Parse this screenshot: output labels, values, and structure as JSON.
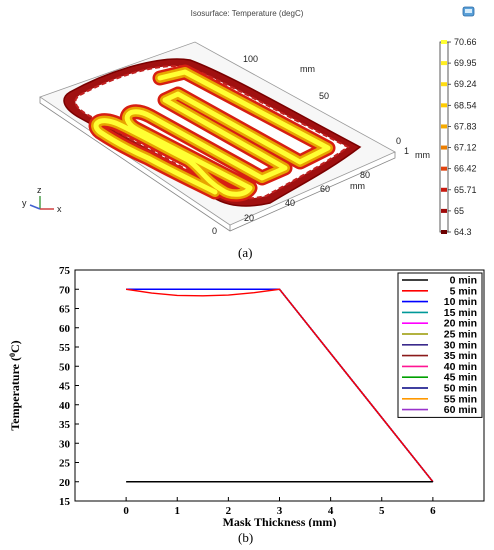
{
  "top_panel": {
    "title": "Isosurface: Temperature (degC)",
    "label": "(a)",
    "colorbar_ticks": [
      "70.66",
      "69.95",
      "69.24",
      "68.54",
      "67.83",
      "67.12",
      "66.42",
      "65.71",
      "65",
      "64.3"
    ],
    "axis_unit": "mm",
    "y_axis_ticks": [
      "100",
      "50",
      "0"
    ],
    "x_axis_ticks": [
      "80",
      "60",
      "40",
      "20",
      "0"
    ],
    "z_axis_tick": "1",
    "triad": {
      "z": "z",
      "y": "y",
      "x": "x"
    },
    "colors": {
      "hot": "#ffff33",
      "warm": "#e8a400",
      "mid": "#e23a1f",
      "cool": "#8b0000"
    }
  },
  "bottom_panel": {
    "label": "(b)"
  },
  "chart_data": {
    "type": "line",
    "title": "",
    "xlabel": "Mask Thickness (mm)",
    "ylabel": "Temperature (0C)",
    "xlim": [
      -1,
      7
    ],
    "ylim": [
      15,
      75
    ],
    "xticks": [
      0,
      1,
      2,
      3,
      4,
      5,
      6
    ],
    "yticks": [
      15,
      20,
      25,
      30,
      35,
      40,
      45,
      50,
      55,
      60,
      65,
      70,
      75
    ],
    "legend_position": "top-right",
    "series": [
      {
        "name": "0 min",
        "color": "#000000",
        "x": [
          0,
          3,
          6
        ],
        "y": [
          20,
          20,
          20
        ]
      },
      {
        "name": "5 min",
        "color": "#ff0000",
        "x": [
          0,
          0.5,
          1,
          1.5,
          2,
          2.5,
          3,
          6
        ],
        "y": [
          70,
          69.0,
          68.4,
          68.3,
          68.5,
          69.1,
          70,
          20
        ]
      },
      {
        "name": "10 min",
        "color": "#0000ff",
        "x": [
          0,
          3,
          6
        ],
        "y": [
          70,
          70,
          20
        ]
      },
      {
        "name": "15 min",
        "color": "#009999",
        "x": [
          0,
          3,
          6
        ],
        "y": [
          70,
          70,
          20
        ]
      },
      {
        "name": "20 min",
        "color": "#ff00ff",
        "x": [
          0,
          3,
          6
        ],
        "y": [
          70,
          70,
          20
        ]
      },
      {
        "name": "25 min",
        "color": "#999900",
        "x": [
          0,
          3,
          6
        ],
        "y": [
          70,
          70,
          20
        ]
      },
      {
        "name": "30 min",
        "color": "#3b2a8c",
        "x": [
          0,
          3,
          6
        ],
        "y": [
          70,
          70,
          20
        ]
      },
      {
        "name": "35 min",
        "color": "#8b1a1a",
        "x": [
          0,
          3,
          6
        ],
        "y": [
          70,
          70,
          20
        ]
      },
      {
        "name": "40 min",
        "color": "#ff1493",
        "x": [
          0,
          3,
          6
        ],
        "y": [
          70,
          70,
          20
        ]
      },
      {
        "name": "45 min",
        "color": "#00a000",
        "x": [
          0,
          3,
          6
        ],
        "y": [
          70,
          70,
          20
        ]
      },
      {
        "name": "50 min",
        "color": "#000080",
        "x": [
          0,
          3,
          6
        ],
        "y": [
          70,
          70,
          20
        ]
      },
      {
        "name": "55 min",
        "color": "#ff9900",
        "x": [
          0,
          3,
          6
        ],
        "y": [
          70,
          70,
          20
        ]
      },
      {
        "name": "60 min",
        "color": "#9933cc",
        "x": [
          0,
          3,
          6
        ],
        "y": [
          70,
          70,
          20
        ]
      }
    ]
  }
}
